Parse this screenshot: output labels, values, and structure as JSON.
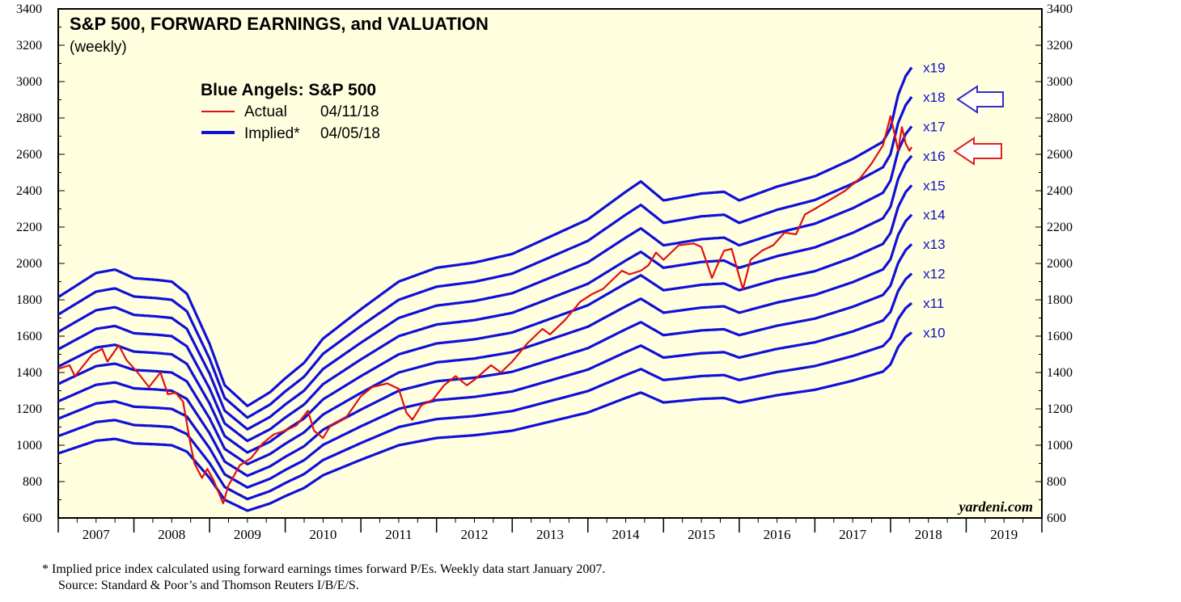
{
  "chart_data": {
    "type": "line",
    "title": "S&P 500, FORWARD EARNINGS, and VALUATION",
    "subtitle": "(weekly)",
    "legend": {
      "title": "Blue Angels: S&P 500",
      "entries": [
        {
          "name": "Actual",
          "date": "04/11/18",
          "color": "#e01010"
        },
        {
          "name": "Implied*",
          "date": "04/05/18",
          "color": "#1010d8"
        }
      ]
    },
    "ylim": [
      600,
      3400
    ],
    "yticks": [
      600,
      800,
      1000,
      1200,
      1400,
      1600,
      1800,
      2000,
      2200,
      2400,
      2600,
      2800,
      3000,
      3200,
      3400
    ],
    "years": [
      "2007",
      "2008",
      "2009",
      "2010",
      "2011",
      "2012",
      "2013",
      "2014",
      "2015",
      "2016",
      "2017",
      "2018",
      "2019"
    ],
    "xlim": [
      2007.0,
      2020.0
    ],
    "grid": false,
    "multiples": [
      "x10",
      "x11",
      "x12",
      "x13",
      "x14",
      "x15",
      "x16",
      "x17",
      "x18",
      "x19"
    ],
    "implied_base": {
      "t": [
        2007.0,
        2007.5,
        2007.75,
        2008.0,
        2008.3,
        2008.5,
        2008.7,
        2009.0,
        2009.2,
        2009.5,
        2009.8,
        2010.0,
        2010.25,
        2010.5,
        2011.0,
        2011.5,
        2012.0,
        2012.5,
        2013.0,
        2013.5,
        2014.0,
        2014.5,
        2014.7,
        2015.0,
        2015.5,
        2015.8,
        2016.0,
        2016.5,
        2017.0,
        2017.5,
        2017.9,
        2018.0,
        2018.1,
        2018.2,
        2018.28
      ],
      "eps": [
        95.5,
        102.5,
        103.5,
        101.0,
        100.5,
        100.0,
        96.5,
        82.0,
        70.0,
        64.0,
        68.0,
        72.0,
        76.5,
        83.5,
        92.0,
        100.0,
        104.0,
        105.5,
        108.0,
        113.0,
        118.0,
        126.0,
        129.0,
        123.5,
        125.5,
        126.0,
        123.5,
        127.5,
        130.5,
        135.5,
        140.5,
        144.5,
        154.0,
        159.5,
        162.0
      ]
    },
    "series": [
      {
        "name": "Actual",
        "t": [
          2007.0,
          2007.15,
          2007.22,
          2007.45,
          2007.58,
          2007.65,
          2007.8,
          2007.9,
          2008.05,
          2008.2,
          2008.35,
          2008.45,
          2008.55,
          2008.65,
          2008.75,
          2008.8,
          2008.9,
          2008.97,
          2009.05,
          2009.18,
          2009.25,
          2009.4,
          2009.55,
          2009.7,
          2009.85,
          2010.0,
          2010.15,
          2010.3,
          2010.38,
          2010.5,
          2010.6,
          2010.8,
          2011.0,
          2011.15,
          2011.35,
          2011.5,
          2011.6,
          2011.68,
          2011.8,
          2011.95,
          2012.1,
          2012.25,
          2012.4,
          2012.5,
          2012.72,
          2012.85,
          2013.0,
          2013.2,
          2013.4,
          2013.5,
          2013.7,
          2013.9,
          2014.05,
          2014.2,
          2014.35,
          2014.45,
          2014.55,
          2014.7,
          2014.8,
          2014.9,
          2015.0,
          2015.2,
          2015.4,
          2015.5,
          2015.64,
          2015.7,
          2015.8,
          2015.9,
          2016.0,
          2016.05,
          2016.15,
          2016.3,
          2016.45,
          2016.6,
          2016.75,
          2016.87,
          2017.0,
          2017.2,
          2017.4,
          2017.6,
          2017.75,
          2017.9,
          2018.0,
          2018.06,
          2018.1,
          2018.15,
          2018.2,
          2018.25,
          2018.28
        ],
        "values": [
          1420,
          1440,
          1380,
          1500,
          1530,
          1460,
          1550,
          1470,
          1400,
          1320,
          1400,
          1280,
          1290,
          1240,
          1000,
          900,
          820,
          870,
          810,
          680,
          780,
          890,
          930,
          1010,
          1060,
          1080,
          1110,
          1190,
          1080,
          1040,
          1110,
          1150,
          1270,
          1320,
          1340,
          1310,
          1180,
          1140,
          1220,
          1250,
          1330,
          1380,
          1330,
          1360,
          1440,
          1400,
          1460,
          1560,
          1640,
          1610,
          1690,
          1790,
          1830,
          1860,
          1920,
          1960,
          1940,
          1960,
          1990,
          2060,
          2020,
          2100,
          2110,
          2090,
          1920,
          1980,
          2070,
          2080,
          1930,
          1860,
          2020,
          2070,
          2100,
          2170,
          2160,
          2270,
          2300,
          2350,
          2400,
          2470,
          2550,
          2650,
          2810,
          2700,
          2620,
          2750,
          2660,
          2620,
          2640
        ],
        "color": "#e01010"
      }
    ]
  },
  "annotations": {
    "brand": "yardeni.com",
    "footnote1": "* Implied price index calculated using forward earnings times forward P/Es. Weekly data start January 2007.",
    "footnote2": "Source: Standard & Poor’s and Thomson Reuters I/B/E/S.",
    "arrow_colors": {
      "blue": "#3030c0",
      "red": "#e02020"
    }
  }
}
